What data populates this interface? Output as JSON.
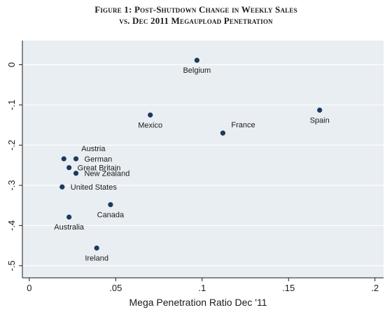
{
  "figure": {
    "title_line1": "Figure 1: Post-Shutdown Change in Weekly Sales",
    "title_line2": "vs. Dec 2011 Megaupload Penetration"
  },
  "chart_data": {
    "type": "scatter",
    "xlabel": "Mega Penetration Ratio Dec '11",
    "ylabel": "",
    "xlim": [
      -0.004,
      0.205
    ],
    "ylim": [
      -0.53,
      0.06
    ],
    "xticks": [
      0,
      0.05,
      0.1,
      0.15,
      0.2
    ],
    "xtick_labels": [
      "0",
      ".05",
      ".1",
      ".15",
      ".2"
    ],
    "yticks": [
      0,
      -0.1,
      -0.2,
      -0.3,
      -0.4,
      -0.5
    ],
    "ytick_labels": [
      "0",
      "-.1",
      "-.2",
      "-.3",
      "-.4",
      "-.5"
    ],
    "grid": "horizontal",
    "plot_background": "#e9eef3",
    "marker_color": "#1c3a5e",
    "points": [
      {
        "label": "Belgium",
        "x": 0.097,
        "y": 0.011,
        "label_pos": "below"
      },
      {
        "label": "Mexico",
        "x": 0.07,
        "y": -0.125,
        "label_pos": "below"
      },
      {
        "label": "France",
        "x": 0.112,
        "y": -0.17,
        "label_pos": "above-right"
      },
      {
        "label": "Spain",
        "x": 0.168,
        "y": -0.113,
        "label_pos": "below"
      },
      {
        "label": "Austria",
        "x": 0.02,
        "y": -0.234,
        "label_pos": "austria"
      },
      {
        "label": "German",
        "x": 0.027,
        "y": -0.234,
        "label_pos": "right"
      },
      {
        "label": "Great Britain",
        "x": 0.023,
        "y": -0.256,
        "label_pos": "right"
      },
      {
        "label": "New Zealand",
        "x": 0.027,
        "y": -0.27,
        "label_pos": "right"
      },
      {
        "label": "United States",
        "x": 0.019,
        "y": -0.304,
        "label_pos": "right"
      },
      {
        "label": "Canada",
        "x": 0.047,
        "y": -0.348,
        "label_pos": "below"
      },
      {
        "label": "Australia",
        "x": 0.023,
        "y": -0.379,
        "label_pos": "below"
      },
      {
        "label": "Ireland",
        "x": 0.039,
        "y": -0.456,
        "label_pos": "below"
      }
    ]
  }
}
